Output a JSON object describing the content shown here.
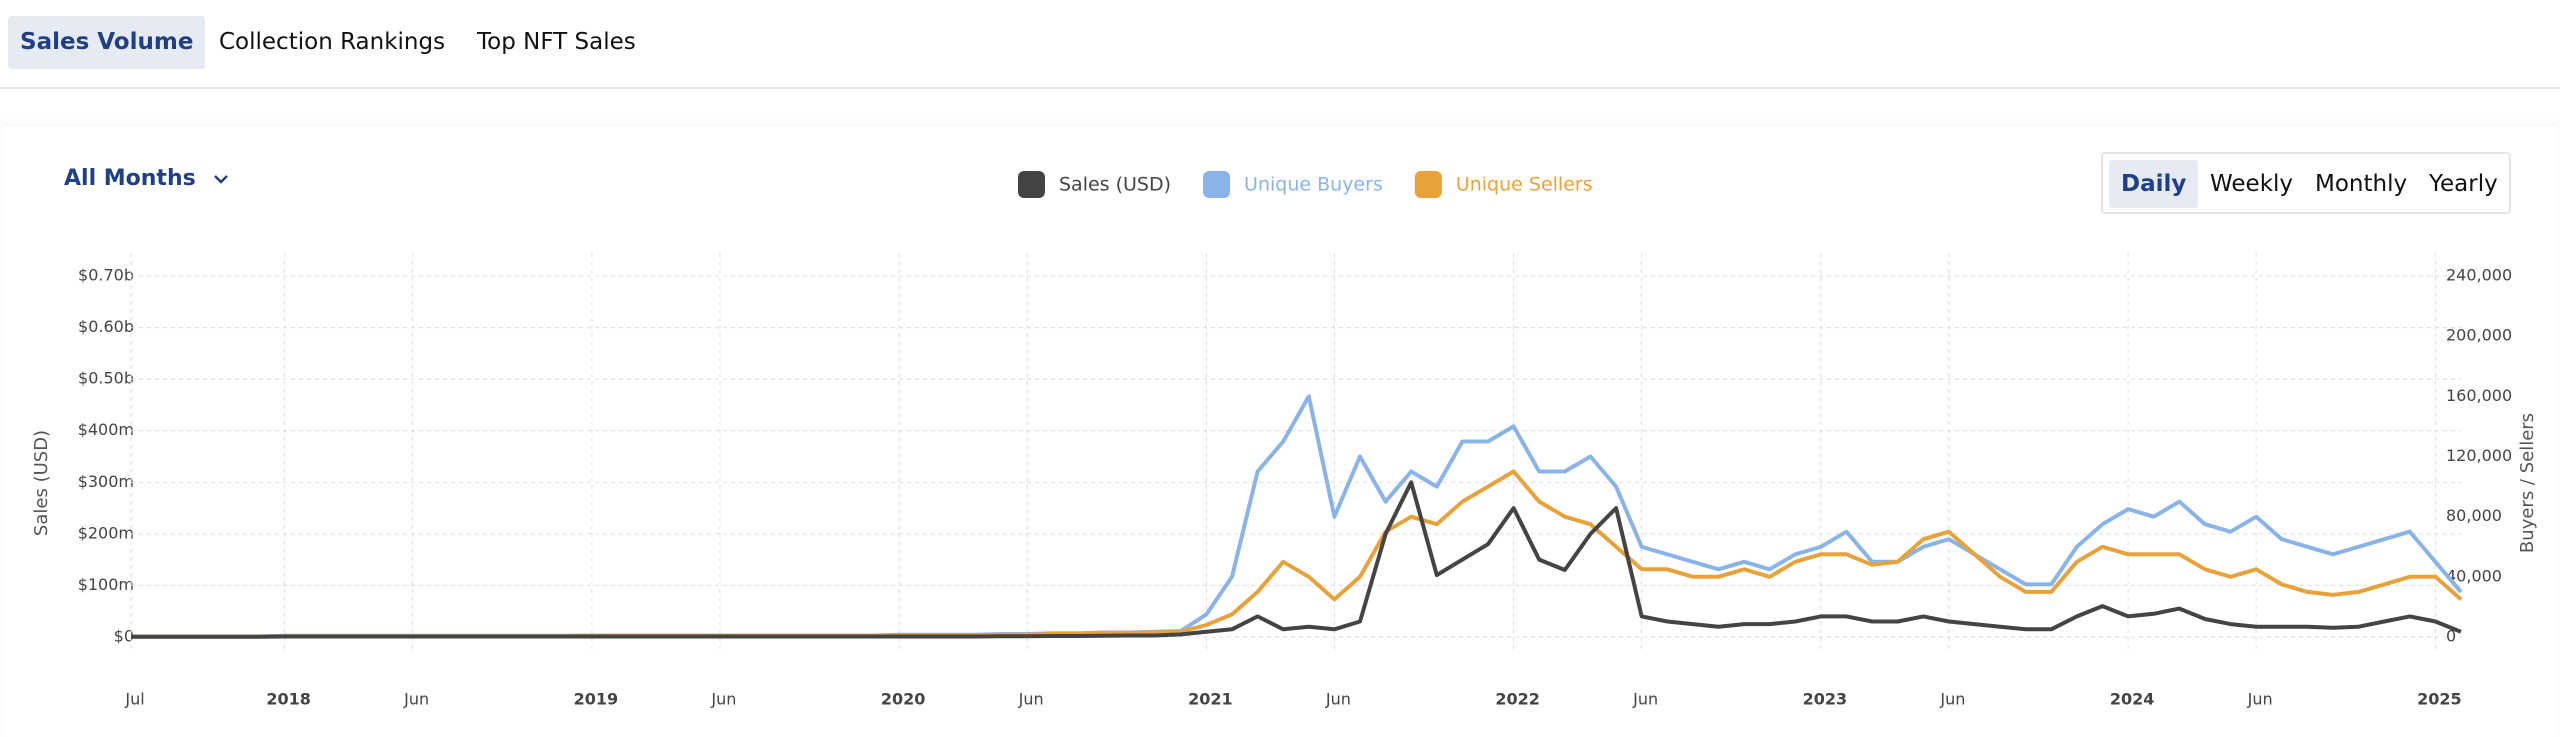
{
  "tabs": [
    "Sales Volume",
    "Collection Rankings",
    "Top NFT Sales"
  ],
  "filter": "All Months",
  "intervals": [
    "Daily",
    "Weekly",
    "Monthly",
    "Yearly"
  ],
  "chart_data": {
    "type": "line",
    "y_label": "Sales (USD)",
    "y2_label": "Buyers / Sellers",
    "x": [
      "2017-07",
      "2017-08",
      "2017-09",
      "2017-10",
      "2017-11",
      "2017-12",
      "2018-01",
      "2018-02",
      "2018-03",
      "2018-04",
      "2018-05",
      "2018-06",
      "2018-07",
      "2018-08",
      "2018-09",
      "2018-10",
      "2018-11",
      "2018-12",
      "2019-01",
      "2019-02",
      "2019-03",
      "2019-04",
      "2019-05",
      "2019-06",
      "2019-07",
      "2019-08",
      "2019-09",
      "2019-10",
      "2019-11",
      "2019-12",
      "2020-01",
      "2020-02",
      "2020-03",
      "2020-04",
      "2020-05",
      "2020-06",
      "2020-07",
      "2020-08",
      "2020-09",
      "2020-10",
      "2020-11",
      "2020-12",
      "2021-01",
      "2021-02",
      "2021-03",
      "2021-04",
      "2021-05",
      "2021-06",
      "2021-07",
      "2021-08",
      "2021-09",
      "2021-10",
      "2021-11",
      "2021-12",
      "2022-01",
      "2022-02",
      "2022-03",
      "2022-04",
      "2022-05",
      "2022-06",
      "2022-07",
      "2022-08",
      "2022-09",
      "2022-10",
      "2022-11",
      "2022-12",
      "2023-01",
      "2023-02",
      "2023-03",
      "2023-04",
      "2023-05",
      "2023-06",
      "2023-07",
      "2023-08",
      "2023-09",
      "2023-10",
      "2023-11",
      "2023-12",
      "2024-01",
      "2024-02",
      "2024-03",
      "2024-04",
      "2024-05",
      "2024-06",
      "2024-07",
      "2024-08",
      "2024-09",
      "2024-10",
      "2024-11",
      "2024-12",
      "2025-01",
      "2025-02"
    ],
    "xlim": [
      "2017-07",
      "2025-02"
    ],
    "xticks": [
      {
        "value": "2017-07",
        "label": "Jul"
      },
      {
        "value": "2018-01",
        "label": "2018"
      },
      {
        "value": "2018-06",
        "label": "Jun"
      },
      {
        "value": "2019-01",
        "label": "2019"
      },
      {
        "value": "2019-06",
        "label": "Jun"
      },
      {
        "value": "2020-01",
        "label": "2020"
      },
      {
        "value": "2020-06",
        "label": "Jun"
      },
      {
        "value": "2021-01",
        "label": "2021"
      },
      {
        "value": "2021-06",
        "label": "Jun"
      },
      {
        "value": "2022-01",
        "label": "2022"
      },
      {
        "value": "2022-06",
        "label": "Jun"
      },
      {
        "value": "2023-01",
        "label": "2023"
      },
      {
        "value": "2023-06",
        "label": "Jun"
      },
      {
        "value": "2024-01",
        "label": "2024"
      },
      {
        "value": "2024-06",
        "label": "Jun"
      },
      {
        "value": "2025-01",
        "label": "2025"
      }
    ],
    "ylim": [
      0,
      700000000
    ],
    "yticks": [
      {
        "value": 0,
        "label": "$0"
      },
      {
        "value": 100000000,
        "label": "$100m"
      },
      {
        "value": 200000000,
        "label": "$200m"
      },
      {
        "value": 300000000,
        "label": "$300m"
      },
      {
        "value": 400000000,
        "label": "$400m"
      },
      {
        "value": 500000000,
        "label": "$0.50b"
      },
      {
        "value": 600000000,
        "label": "$0.60b"
      },
      {
        "value": 700000000,
        "label": "$0.70b"
      }
    ],
    "y2lim": [
      0,
      240000
    ],
    "y2ticks": [
      0,
      {
        "value": 40000,
        "label": "40,000"
      },
      {
        "value": 80000,
        "label": "80,000"
      },
      {
        "value": 120000,
        "label": "120,000"
      },
      {
        "value": 160000,
        "label": "160,000"
      },
      {
        "value": 200000,
        "label": "200,000"
      },
      {
        "value": 240000,
        "label": "240,000"
      }
    ],
    "grid": true,
    "series": [
      {
        "name": "Sales (USD)",
        "color": "#444444",
        "values": [
          500000,
          500000,
          500000,
          500000,
          500000,
          500000,
          1000000,
          1000000,
          1000000,
          1000000,
          1000000,
          1000000,
          1000000,
          1000000,
          1000000,
          1000000,
          1000000,
          1000000,
          1000000,
          1000000,
          1000000,
          1000000,
          1000000,
          1000000,
          1000000,
          1000000,
          1000000,
          1000000,
          1000000,
          1000000,
          1000000,
          1000000,
          1000000,
          1000000,
          1500000,
          1500000,
          2000000,
          2000000,
          2500000,
          3000000,
          3000000,
          5000000,
          10000000,
          15000000,
          40000000,
          15000000,
          20000000,
          15000000,
          30000000,
          200000000,
          300000000,
          120000000,
          150000000,
          180000000,
          250000000,
          150000000,
          130000000,
          200000000,
          250000000,
          40000000,
          30000000,
          25000000,
          20000000,
          25000000,
          25000000,
          30000000,
          40000000,
          40000000,
          30000000,
          30000000,
          40000000,
          30000000,
          25000000,
          20000000,
          15000000,
          15000000,
          40000000,
          60000000,
          40000000,
          45000000,
          55000000,
          35000000,
          25000000,
          20000000,
          20000000,
          20000000,
          18000000,
          20000000,
          30000000,
          40000000,
          30000000,
          10000000
        ]
      },
      {
        "name": "Unique Buyers",
        "color": "#8ab4e8",
        "axis": "y2",
        "values": [
          300,
          300,
          300,
          300,
          300,
          300,
          800,
          800,
          800,
          800,
          800,
          800,
          800,
          800,
          800,
          800,
          800,
          800,
          1000,
          1000,
          1000,
          1000,
          1000,
          1000,
          1000,
          1000,
          1000,
          1000,
          1000,
          1000,
          1500,
          1500,
          1500,
          1500,
          2000,
          2000,
          2500,
          2500,
          3000,
          3000,
          3500,
          4000,
          15000,
          40000,
          110000,
          130000,
          160000,
          80000,
          120000,
          90000,
          110000,
          100000,
          130000,
          130000,
          140000,
          110000,
          110000,
          120000,
          100000,
          60000,
          55000,
          50000,
          45000,
          50000,
          45000,
          55000,
          60000,
          70000,
          50000,
          50000,
          60000,
          65000,
          55000,
          45000,
          35000,
          35000,
          60000,
          75000,
          85000,
          80000,
          90000,
          75000,
          70000,
          80000,
          65000,
          60000,
          55000,
          60000,
          65000,
          70000,
          50000,
          30000
        ]
      },
      {
        "name": "Unique Sellers",
        "color": "#e8a23a",
        "axis": "y2",
        "values": [
          250,
          250,
          250,
          250,
          250,
          250,
          600,
          600,
          600,
          600,
          600,
          600,
          600,
          600,
          600,
          600,
          600,
          600,
          800,
          800,
          800,
          800,
          800,
          800,
          800,
          800,
          800,
          800,
          800,
          800,
          1200,
          1200,
          1200,
          1200,
          1500,
          1500,
          2000,
          2000,
          2500,
          2500,
          3000,
          3500,
          8000,
          15000,
          30000,
          50000,
          40000,
          25000,
          40000,
          70000,
          80000,
          75000,
          90000,
          100000,
          110000,
          90000,
          80000,
          75000,
          60000,
          45000,
          45000,
          40000,
          40000,
          45000,
          40000,
          50000,
          55000,
          55000,
          48000,
          50000,
          65000,
          70000,
          55000,
          40000,
          30000,
          30000,
          50000,
          60000,
          55000,
          55000,
          55000,
          45000,
          40000,
          45000,
          35000,
          30000,
          28000,
          30000,
          35000,
          40000,
          40000,
          25000
        ]
      }
    ]
  }
}
